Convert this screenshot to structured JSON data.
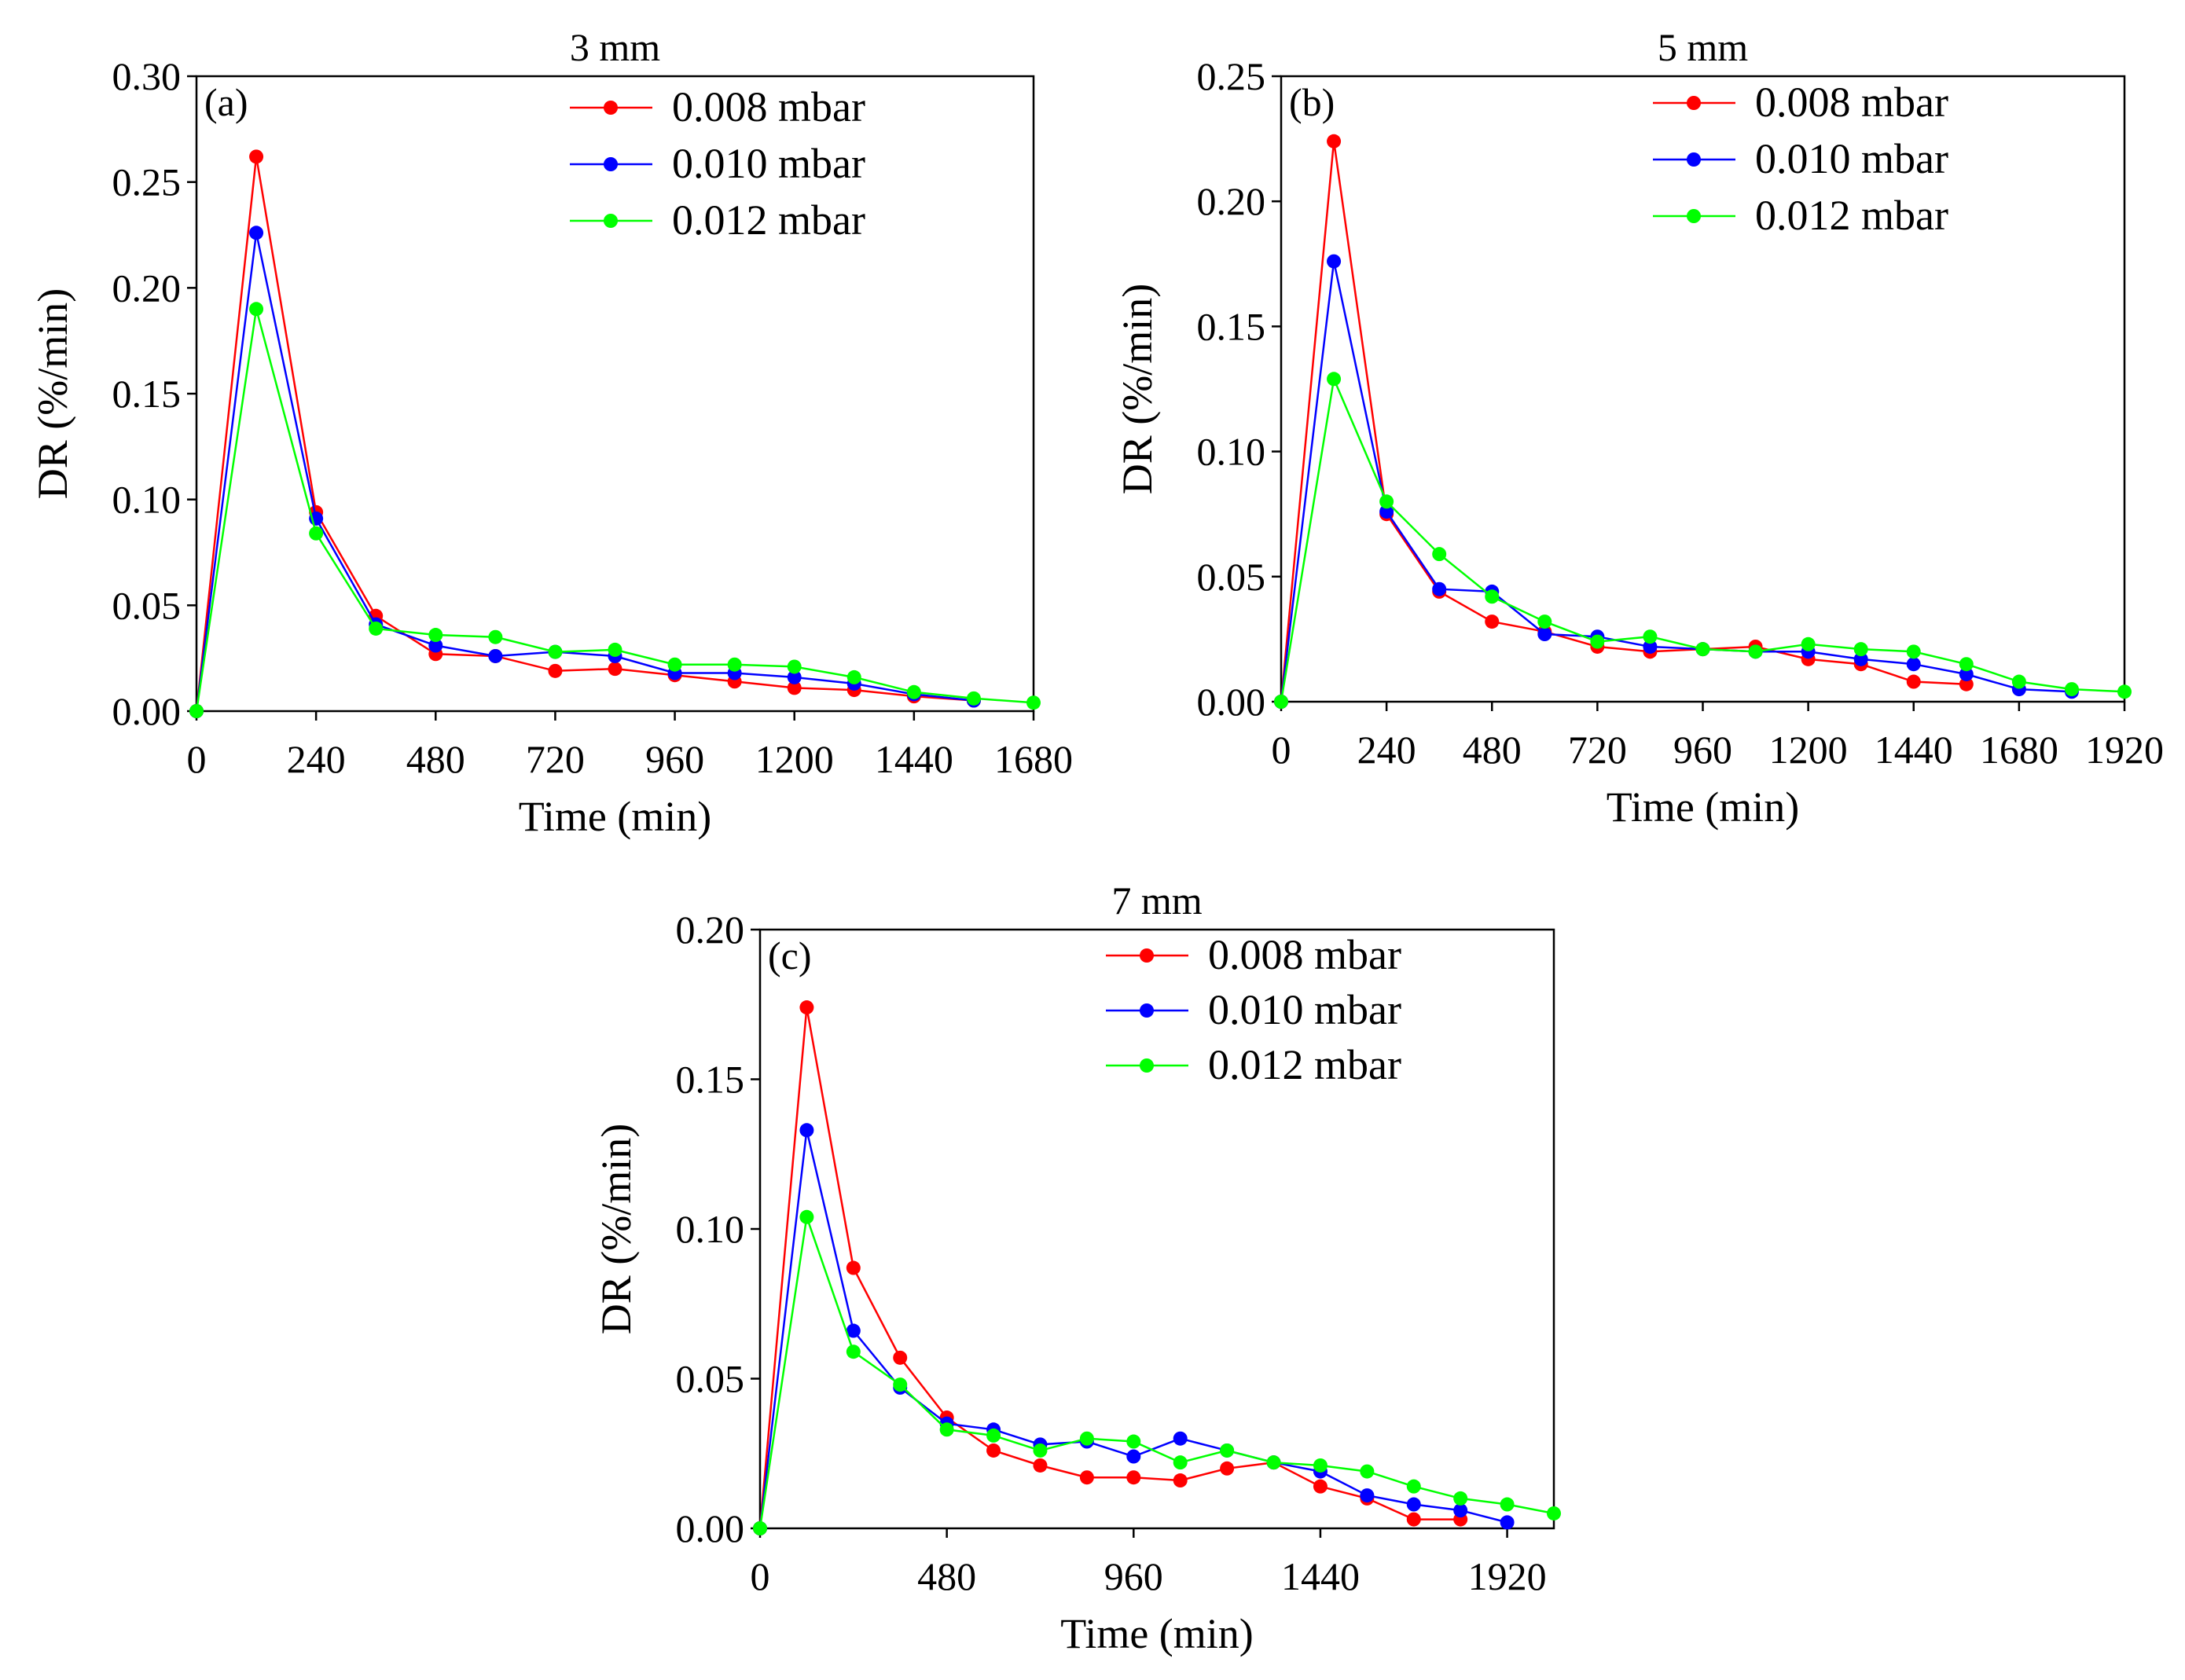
{
  "chart_data": [
    {
      "type": "line",
      "panel": "(a)",
      "title": "3 mm",
      "xlabel": "Time (min)",
      "ylabel": "DR (%/min)",
      "xlim": [
        0,
        1680
      ],
      "ylim": [
        0,
        0.3
      ],
      "xticks": [
        "0",
        "240",
        "480",
        "720",
        "960",
        "1200",
        "1440",
        "1680"
      ],
      "yticks": [
        "0.00",
        "0.05",
        "0.10",
        "0.15",
        "0.20",
        "0.25",
        "0.30"
      ],
      "legend_position": "top-right",
      "series": [
        {
          "name": "0.008 mbar",
          "color": "#ff0000",
          "x": [
            0,
            120,
            240,
            360,
            480,
            600,
            720,
            840,
            960,
            1080,
            1200,
            1320,
            1440,
            1560
          ],
          "values": [
            0.0,
            0.262,
            0.094,
            0.045,
            0.027,
            0.026,
            0.019,
            0.02,
            0.017,
            0.014,
            0.011,
            0.01,
            0.007,
            0.005
          ]
        },
        {
          "name": "0.010 mbar",
          "color": "#0000ff",
          "x": [
            0,
            120,
            240,
            360,
            480,
            600,
            720,
            840,
            960,
            1080,
            1200,
            1320,
            1440,
            1560
          ],
          "values": [
            0.0,
            0.226,
            0.091,
            0.041,
            0.031,
            0.026,
            0.028,
            0.026,
            0.018,
            0.018,
            0.016,
            0.013,
            0.008,
            0.005
          ]
        },
        {
          "name": "0.012 mbar",
          "color": "#00ff00",
          "x": [
            0,
            120,
            240,
            360,
            480,
            600,
            720,
            840,
            960,
            1080,
            1200,
            1320,
            1440,
            1560,
            1680
          ],
          "values": [
            0.0,
            0.19,
            0.084,
            0.039,
            0.036,
            0.035,
            0.028,
            0.029,
            0.022,
            0.022,
            0.021,
            0.016,
            0.009,
            0.006,
            0.004
          ]
        }
      ]
    },
    {
      "type": "line",
      "panel": "(b)",
      "title": "5 mm",
      "xlabel": "Time (min)",
      "ylabel": "DR (%/min)",
      "xlim": [
        0,
        1920
      ],
      "ylim": [
        0,
        0.25
      ],
      "xticks": [
        "0",
        "240",
        "480",
        "720",
        "960",
        "1200",
        "1440",
        "1680",
        "1920"
      ],
      "yticks": [
        "0.00",
        "0.05",
        "0.10",
        "0.15",
        "0.20",
        "0.25"
      ],
      "legend_position": "top-right",
      "series": [
        {
          "name": "0.008 mbar",
          "color": "#ff0000",
          "x": [
            0,
            120,
            240,
            360,
            480,
            600,
            720,
            840,
            960,
            1080,
            1200,
            1320,
            1440,
            1560
          ],
          "values": [
            0.0,
            0.224,
            0.075,
            0.044,
            0.032,
            0.028,
            0.022,
            0.02,
            0.021,
            0.022,
            0.017,
            0.015,
            0.008,
            0.007
          ]
        },
        {
          "name": "0.010 mbar",
          "color": "#0000ff",
          "x": [
            0,
            120,
            240,
            360,
            480,
            600,
            720,
            840,
            960,
            1080,
            1200,
            1320,
            1440,
            1560,
            1680,
            1800
          ],
          "values": [
            0.0,
            0.176,
            0.076,
            0.045,
            0.044,
            0.027,
            0.026,
            0.022,
            0.021,
            0.02,
            0.02,
            0.017,
            0.015,
            0.011,
            0.005,
            0.004
          ]
        },
        {
          "name": "0.012 mbar",
          "color": "#00ff00",
          "x": [
            0,
            120,
            240,
            360,
            480,
            600,
            720,
            840,
            960,
            1080,
            1200,
            1320,
            1440,
            1560,
            1680,
            1800,
            1920
          ],
          "values": [
            0.0,
            0.129,
            0.08,
            0.059,
            0.042,
            0.032,
            0.024,
            0.026,
            0.021,
            0.02,
            0.023,
            0.021,
            0.02,
            0.015,
            0.008,
            0.005,
            0.004
          ]
        }
      ]
    },
    {
      "type": "line",
      "panel": "(c)",
      "title": "7 mm",
      "xlabel": "Time (min)",
      "ylabel": "DR (%/min)",
      "xlim": [
        0,
        2040
      ],
      "ylim": [
        0,
        0.2
      ],
      "xticks": [
        "0",
        "480",
        "960",
        "1440",
        "1920"
      ],
      "xtick_values": [
        0,
        480,
        960,
        1440,
        1920
      ],
      "yticks": [
        "0.00",
        "0.05",
        "0.10",
        "0.15",
        "0.20"
      ],
      "legend_position": "top-right",
      "series": [
        {
          "name": "0.008 mbar",
          "color": "#ff0000",
          "x": [
            0,
            120,
            240,
            360,
            480,
            600,
            720,
            840,
            960,
            1080,
            1200,
            1320,
            1440,
            1560,
            1680,
            1800
          ],
          "values": [
            0.0,
            0.174,
            0.087,
            0.057,
            0.037,
            0.026,
            0.021,
            0.017,
            0.017,
            0.016,
            0.02,
            0.022,
            0.014,
            0.01,
            0.003,
            0.003
          ]
        },
        {
          "name": "0.010 mbar",
          "color": "#0000ff",
          "x": [
            0,
            120,
            240,
            360,
            480,
            600,
            720,
            840,
            960,
            1080,
            1200,
            1320,
            1440,
            1560,
            1680,
            1800,
            1920
          ],
          "values": [
            0.0,
            0.133,
            0.066,
            0.047,
            0.035,
            0.033,
            0.028,
            0.029,
            0.024,
            0.03,
            0.026,
            0.022,
            0.019,
            0.011,
            0.008,
            0.006,
            0.002
          ]
        },
        {
          "name": "0.012 mbar",
          "color": "#00ff00",
          "x": [
            0,
            120,
            240,
            360,
            480,
            600,
            720,
            840,
            960,
            1080,
            1200,
            1320,
            1440,
            1560,
            1680,
            1800,
            1920,
            2040
          ],
          "values": [
            0.0,
            0.104,
            0.059,
            0.048,
            0.033,
            0.031,
            0.026,
            0.03,
            0.029,
            0.022,
            0.026,
            0.022,
            0.021,
            0.019,
            0.014,
            0.01,
            0.008,
            0.005
          ]
        }
      ]
    }
  ]
}
